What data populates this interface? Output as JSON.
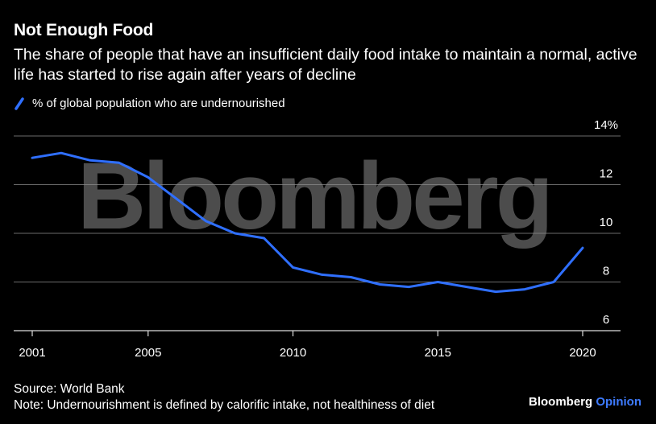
{
  "header": {
    "title": "Not Enough Food",
    "subtitle": "The share of people that have an insufficient daily food intake to maintain a normal, active life has started to rise again after years of decline"
  },
  "legend": {
    "label": "% of global population who are undernourished",
    "color": "#2f6fff"
  },
  "footer": {
    "source": "Source: World Bank",
    "note": "Note: Undernourishment is defined by calorific intake, not healthiness of diet",
    "brand_main": "Bloomberg",
    "brand_accent": "Opinion"
  },
  "watermark": "Bloomberg",
  "chart_data": {
    "type": "line",
    "title": "Not Enough Food",
    "ylim": [
      6,
      14
    ],
    "y_ticks": [
      6,
      8,
      10,
      12,
      14
    ],
    "y_tick_labels": [
      "6",
      "8",
      "10",
      "12",
      "14%"
    ],
    "x_ticks": [
      2001,
      2005,
      2010,
      2015,
      2020
    ],
    "x_tick_labels": [
      "2001",
      "2005",
      "2010",
      "2015",
      "2020"
    ],
    "xlim": [
      2001,
      2020
    ],
    "grid": true,
    "legend_position": "top-left",
    "series": [
      {
        "name": "% of global population who are undernourished",
        "color": "#2f6fff",
        "x": [
          2001,
          2002,
          2003,
          2004,
          2005,
          2006,
          2007,
          2008,
          2009,
          2010,
          2011,
          2012,
          2013,
          2014,
          2015,
          2016,
          2017,
          2018,
          2019,
          2020
        ],
        "y": [
          13.1,
          13.3,
          13.0,
          12.9,
          12.3,
          11.4,
          10.5,
          10.0,
          9.8,
          8.6,
          8.3,
          8.2,
          7.9,
          7.8,
          8.0,
          7.8,
          7.6,
          7.7,
          8.0,
          9.4
        ]
      }
    ]
  }
}
